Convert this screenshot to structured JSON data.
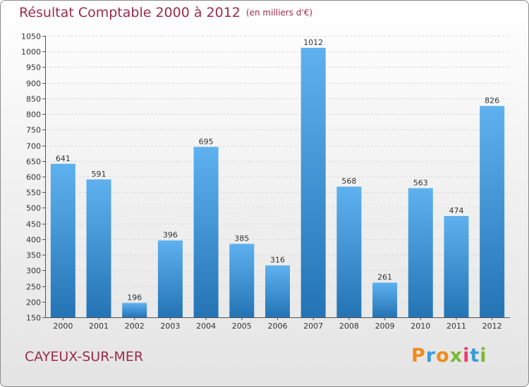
{
  "header": {
    "title": "Résultat Comptable 2000 à 2012",
    "subtitle": "(en milliers d'€)"
  },
  "footer": {
    "place": "CAYEUX-SUR-MER",
    "brand": "Proxiti"
  },
  "colors": {
    "title": "#9c2a4b",
    "bar_top": "#5eb1ef",
    "bar_bottom": "#2474b5"
  },
  "chart_data": {
    "type": "bar",
    "title": "Résultat Comptable 2000 à 2012",
    "unit": "(en milliers d'€)",
    "xlabel": "",
    "ylabel": "",
    "categories": [
      "2000",
      "2001",
      "2002",
      "2003",
      "2004",
      "2005",
      "2006",
      "2007",
      "2008",
      "2009",
      "2010",
      "2011",
      "2012"
    ],
    "values": [
      641,
      591,
      196,
      396,
      695,
      385,
      316,
      1012,
      568,
      261,
      563,
      474,
      826
    ],
    "ylim": [
      150,
      1050
    ],
    "ytick_step": 50,
    "grid": true
  }
}
